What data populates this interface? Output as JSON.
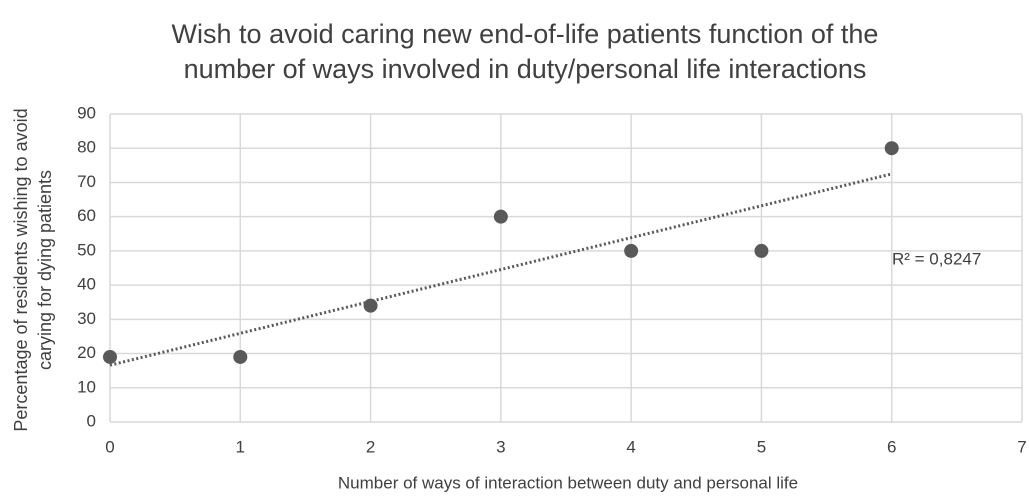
{
  "chart_data": {
    "type": "scatter",
    "title": [
      "Wish to avoid caring new end-of-life patients function of the",
      "number of ways involved in duty/personal life interactions"
    ],
    "xlabel": "Number of ways of interaction between duty and personal life",
    "ylabel": [
      "Percentage of residents wishing to avoid",
      "carying for dying patients"
    ],
    "x": [
      0,
      1,
      2,
      3,
      4,
      5,
      6
    ],
    "values": [
      19,
      19,
      34,
      60,
      50,
      50,
      80
    ],
    "color": "#595959",
    "trendline": {
      "x": [
        0,
        6
      ],
      "values": [
        16.6,
        72.5
      ],
      "color": "#595959"
    },
    "annotation": "R² = 0,8247",
    "xlim": [
      0,
      7
    ],
    "xticks": [
      0,
      1,
      2,
      3,
      4,
      5,
      6,
      7
    ],
    "ylim": [
      0,
      90
    ],
    "yticks": [
      0,
      10,
      20,
      30,
      40,
      50,
      60,
      70,
      80,
      90
    ],
    "grid": true
  }
}
